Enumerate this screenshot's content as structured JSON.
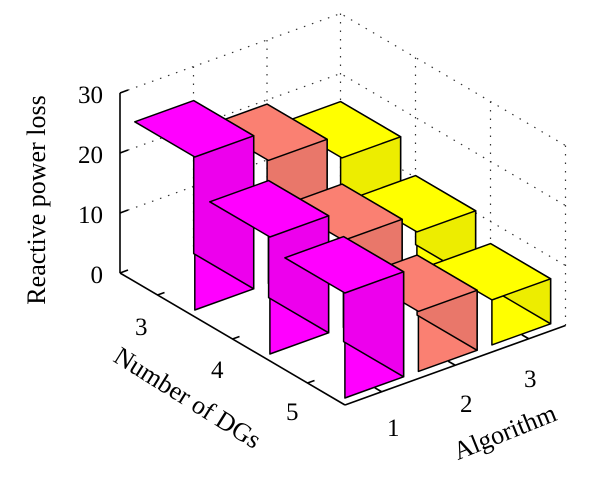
{
  "chart_data": {
    "type": "bar3d",
    "zlabel": "Reactive power loss",
    "xlabel": "Algorithm",
    "ylabel": "Number of DGs",
    "x_categories": [
      "1",
      "2",
      "3"
    ],
    "y_categories": [
      "3",
      "4",
      "5"
    ],
    "zlim": [
      0,
      30
    ],
    "z_ticks": [
      "0",
      "10",
      "20",
      "30"
    ],
    "grid": true,
    "series": [
      {
        "algorithm": "1",
        "color": "#ff00ff",
        "values": [
          25.5,
          19.5,
          17.5
        ]
      },
      {
        "algorithm": "2",
        "color": "#fa8072",
        "values": [
          20.5,
          14.5,
          10.0
        ]
      },
      {
        "algorithm": "3",
        "color": "#ffff00",
        "values": [
          16.5,
          11.5,
          7.5
        ]
      }
    ]
  }
}
